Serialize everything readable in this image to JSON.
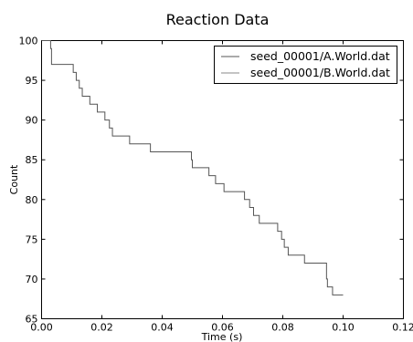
{
  "chart_data": {
    "type": "line",
    "title": "Reaction Data",
    "xlabel": "Time (s)",
    "ylabel": "Count",
    "xlim": [
      0.0,
      0.12
    ],
    "ylim": [
      65,
      100
    ],
    "xticks": [
      "0.00",
      "0.02",
      "0.04",
      "0.06",
      "0.08",
      "0.10",
      "0.12"
    ],
    "yticks": [
      "65",
      "70",
      "75",
      "80",
      "85",
      "90",
      "95",
      "100"
    ],
    "xtick_values": [
      0.0,
      0.02,
      0.04,
      0.06,
      0.08,
      0.1,
      0.12
    ],
    "ytick_values": [
      65,
      70,
      75,
      80,
      85,
      90,
      95,
      100
    ],
    "grid": false,
    "legend_position": "top-right",
    "step": true,
    "series": [
      {
        "name": "seed_00001/A.World.dat",
        "color": "#555555",
        "x": [
          0.0,
          0.003,
          0.0033,
          0.0105,
          0.0115,
          0.0125,
          0.0135,
          0.016,
          0.0185,
          0.021,
          0.0225,
          0.0235,
          0.0292,
          0.0361,
          0.0497,
          0.05,
          0.0555,
          0.0577,
          0.0605,
          0.0673,
          0.069,
          0.0695,
          0.0703,
          0.0722,
          0.0783,
          0.0796,
          0.0805,
          0.0818,
          0.0872,
          0.0945,
          0.0948,
          0.0965,
          0.1
        ],
        "y": [
          100,
          99,
          97,
          96,
          95,
          94,
          93,
          92,
          91,
          90,
          89,
          88,
          87,
          86,
          85,
          84,
          83,
          82,
          81,
          80,
          79,
          79,
          78,
          77,
          76,
          75,
          74,
          73,
          72,
          70,
          69,
          68,
          68
        ]
      },
      {
        "name": "seed_00001/B.World.dat",
        "color": "#888888",
        "x": [],
        "y": []
      }
    ]
  }
}
